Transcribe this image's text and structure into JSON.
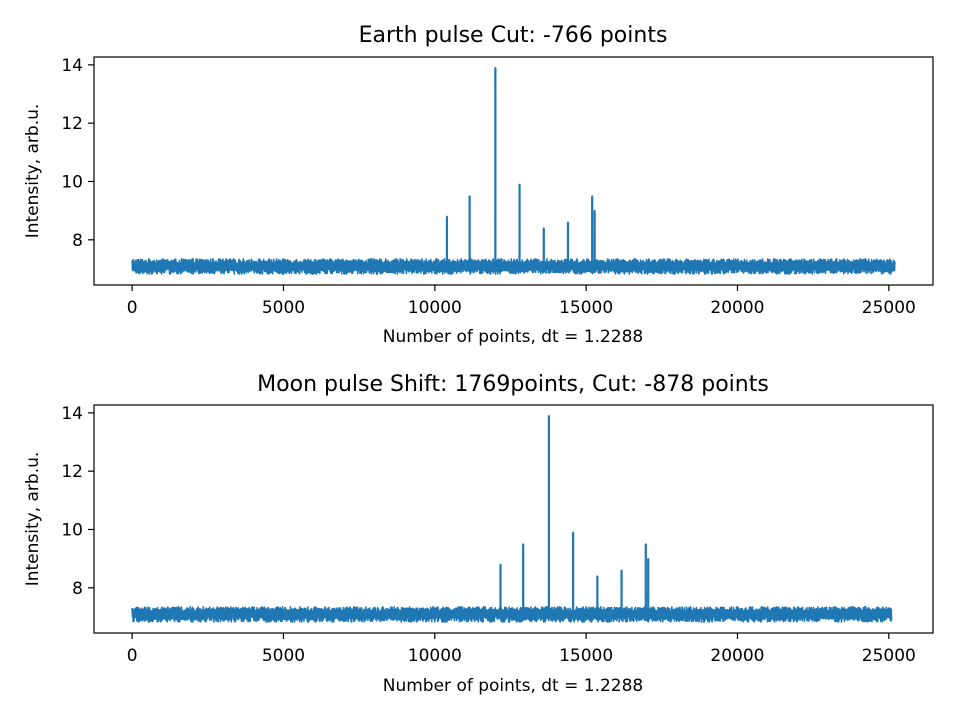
{
  "chart_data": [
    {
      "type": "line",
      "title": "Earth pulse Cut: -766 points",
      "xlabel": "Number of points, dt = 1.2288",
      "ylabel": "Intensity, arb.u.",
      "xlim": [
        -1260,
        26460
      ],
      "ylim": [
        6.45,
        14.27
      ],
      "xticks": [
        0,
        5000,
        10000,
        15000,
        20000,
        25000
      ],
      "xtick_labels": [
        "0",
        "5000",
        "10000",
        "15000",
        "20000",
        "25000"
      ],
      "yticks": [
        8,
        10,
        12,
        14
      ],
      "ytick_labels": [
        "8",
        "10",
        "12",
        "14"
      ],
      "grid": false,
      "series": [
        {
          "color": "#1f77b4",
          "x_range": [
            0,
            25200
          ],
          "baseline": 7.1,
          "noise_band": [
            6.85,
            7.4
          ],
          "peaks": [
            {
              "x": 10400,
              "y": 8.8
            },
            {
              "x": 11150,
              "y": 9.5
            },
            {
              "x": 12000,
              "y": 13.9
            },
            {
              "x": 12800,
              "y": 9.9
            },
            {
              "x": 13600,
              "y": 8.4
            },
            {
              "x": 14400,
              "y": 8.6
            },
            {
              "x": 15200,
              "y": 9.5
            },
            {
              "x": 15280,
              "y": 9.0
            }
          ]
        }
      ]
    },
    {
      "type": "line",
      "title": "Moon pulse Shift: 1769points, Cut: -878 points",
      "xlabel": "Number of points, dt = 1.2288",
      "ylabel": "Intensity, arb.u.",
      "xlim": [
        -1260,
        26460
      ],
      "ylim": [
        6.45,
        14.27
      ],
      "xticks": [
        0,
        5000,
        10000,
        15000,
        20000,
        25000
      ],
      "xtick_labels": [
        "0",
        "5000",
        "10000",
        "15000",
        "20000",
        "25000"
      ],
      "yticks": [
        8,
        10,
        12,
        14
      ],
      "ytick_labels": [
        "8",
        "10",
        "12",
        "14"
      ],
      "grid": false,
      "series": [
        {
          "color": "#1f77b4",
          "x_range": [
            0,
            25100
          ],
          "baseline": 7.1,
          "noise_band": [
            6.85,
            7.4
          ],
          "peaks": [
            {
              "x": 12170,
              "y": 8.8
            },
            {
              "x": 12920,
              "y": 9.5
            },
            {
              "x": 13770,
              "y": 13.9
            },
            {
              "x": 14570,
              "y": 9.9
            },
            {
              "x": 15370,
              "y": 8.4
            },
            {
              "x": 16170,
              "y": 8.6
            },
            {
              "x": 16970,
              "y": 9.5
            },
            {
              "x": 17050,
              "y": 9.0
            }
          ]
        }
      ]
    }
  ]
}
